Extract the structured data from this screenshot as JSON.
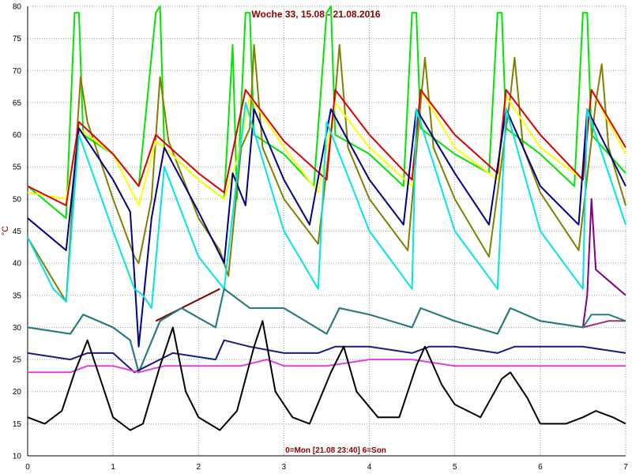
{
  "chart_data": {
    "type": "line",
    "title": "Woche 33, 15.08 - 21.08.2016",
    "xlabel": "0=Mon [21.08 23:40] 6=Son",
    "ylabel": "°C",
    "xlim": [
      0,
      7
    ],
    "ylim": [
      10,
      80
    ],
    "xticks": [
      "0",
      "1",
      "2",
      "3",
      "4",
      "5",
      "6",
      "7"
    ],
    "yticks": [
      "10",
      "15",
      "20",
      "25",
      "30",
      "35",
      "40",
      "45",
      "50",
      "55",
      "60",
      "65",
      "70",
      "75",
      "80"
    ],
    "grid": true,
    "series": [
      {
        "color": "#00e600",
        "points": [
          [
            0,
            52
          ],
          [
            0.45,
            47
          ],
          [
            0.55,
            79
          ],
          [
            0.6,
            79
          ],
          [
            0.65,
            60
          ],
          [
            1,
            57
          ],
          [
            1.3,
            52
          ],
          [
            1.5,
            79
          ],
          [
            1.55,
            80
          ],
          [
            1.6,
            58
          ],
          [
            2,
            53
          ],
          [
            2.3,
            50
          ],
          [
            2.4,
            74
          ],
          [
            2.45,
            50
          ],
          [
            2.55,
            79
          ],
          [
            2.6,
            79
          ],
          [
            2.65,
            60
          ],
          [
            3,
            57
          ],
          [
            3.35,
            52
          ],
          [
            3.5,
            79
          ],
          [
            3.55,
            80
          ],
          [
            3.6,
            60
          ],
          [
            4,
            57
          ],
          [
            4.4,
            52
          ],
          [
            4.5,
            79
          ],
          [
            4.55,
            79
          ],
          [
            4.6,
            61
          ],
          [
            5,
            57
          ],
          [
            5.4,
            54
          ],
          [
            5.5,
            79
          ],
          [
            5.55,
            79
          ],
          [
            5.6,
            61
          ],
          [
            6,
            57
          ],
          [
            6.4,
            52
          ],
          [
            6.5,
            79
          ],
          [
            6.55,
            79
          ],
          [
            6.6,
            60
          ],
          [
            7,
            54
          ]
        ]
      },
      {
        "color": "#808000",
        "points": [
          [
            0,
            44
          ],
          [
            0.45,
            34
          ],
          [
            0.62,
            69
          ],
          [
            0.7,
            62
          ],
          [
            1,
            50
          ],
          [
            1.25,
            41
          ],
          [
            1.3,
            40
          ],
          [
            1.45,
            50
          ],
          [
            1.55,
            69
          ],
          [
            1.65,
            59
          ],
          [
            2,
            47
          ],
          [
            2.25,
            42
          ],
          [
            2.35,
            38
          ],
          [
            2.5,
            58
          ],
          [
            2.6,
            61
          ],
          [
            2.65,
            74
          ],
          [
            2.75,
            58
          ],
          [
            3,
            50
          ],
          [
            3.4,
            43
          ],
          [
            3.6,
            66
          ],
          [
            3.65,
            74
          ],
          [
            3.75,
            58
          ],
          [
            4,
            50
          ],
          [
            4.45,
            42
          ],
          [
            4.6,
            65
          ],
          [
            4.65,
            72
          ],
          [
            4.75,
            58
          ],
          [
            5,
            50
          ],
          [
            5.4,
            41
          ],
          [
            5.65,
            66
          ],
          [
            5.7,
            72
          ],
          [
            5.8,
            58
          ],
          [
            6,
            51
          ],
          [
            6.45,
            42
          ],
          [
            6.65,
            65
          ],
          [
            6.72,
            71
          ],
          [
            6.8,
            58
          ],
          [
            7,
            49
          ]
        ]
      },
      {
        "color": "#ffff00",
        "points": [
          [
            0,
            51
          ],
          [
            0.45,
            50
          ],
          [
            0.6,
            61
          ],
          [
            1,
            57
          ],
          [
            1.3,
            49
          ],
          [
            1.5,
            59
          ],
          [
            1.6,
            58
          ],
          [
            2,
            53
          ],
          [
            2.3,
            50
          ],
          [
            2.45,
            56
          ],
          [
            2.6,
            66
          ],
          [
            3,
            58
          ],
          [
            3.4,
            51
          ],
          [
            3.6,
            65
          ],
          [
            4,
            58
          ],
          [
            4.5,
            52
          ],
          [
            4.6,
            67
          ],
          [
            5,
            58
          ],
          [
            5.5,
            53
          ],
          [
            5.6,
            66
          ],
          [
            6,
            58
          ],
          [
            6.5,
            53
          ],
          [
            6.6,
            67
          ],
          [
            7,
            57
          ]
        ]
      },
      {
        "color": "#dd0000",
        "points": [
          [
            0,
            52
          ],
          [
            0.45,
            49
          ],
          [
            0.6,
            62
          ],
          [
            1,
            57
          ],
          [
            1.3,
            52
          ],
          [
            1.5,
            60
          ],
          [
            2,
            54
          ],
          [
            2.3,
            51
          ],
          [
            2.55,
            67
          ],
          [
            3,
            59
          ],
          [
            3.5,
            53
          ],
          [
            3.6,
            67
          ],
          [
            4,
            60
          ],
          [
            4.5,
            53
          ],
          [
            4.6,
            67
          ],
          [
            5,
            60
          ],
          [
            5.5,
            54
          ],
          [
            5.6,
            67
          ],
          [
            6,
            60
          ],
          [
            6.5,
            53
          ],
          [
            6.6,
            67
          ],
          [
            7,
            58
          ]
        ]
      },
      {
        "color": "#000080",
        "points": [
          [
            0,
            47
          ],
          [
            0.45,
            42
          ],
          [
            0.6,
            61
          ],
          [
            1,
            53
          ],
          [
            1.2,
            48
          ],
          [
            1.25,
            38
          ],
          [
            1.3,
            27
          ],
          [
            1.45,
            47
          ],
          [
            1.6,
            58
          ],
          [
            2,
            48
          ],
          [
            2.3,
            40
          ],
          [
            2.4,
            54
          ],
          [
            2.55,
            49
          ],
          [
            2.65,
            64
          ],
          [
            3,
            53
          ],
          [
            3.3,
            46
          ],
          [
            3.55,
            64
          ],
          [
            4,
            53
          ],
          [
            4.4,
            46
          ],
          [
            4.55,
            64
          ],
          [
            5,
            54
          ],
          [
            5.4,
            46
          ],
          [
            5.6,
            64
          ],
          [
            6,
            52
          ],
          [
            6.45,
            46
          ],
          [
            6.55,
            64
          ],
          [
            7,
            52
          ]
        ]
      },
      {
        "color": "#00e6e6",
        "points": [
          [
            0,
            44
          ],
          [
            0.3,
            36
          ],
          [
            0.45,
            34
          ],
          [
            0.6,
            60
          ],
          [
            1,
            45
          ],
          [
            1.25,
            36
          ],
          [
            1.35,
            35
          ],
          [
            1.45,
            33
          ],
          [
            1.6,
            55
          ],
          [
            2,
            41
          ],
          [
            2.3,
            36
          ],
          [
            2.55,
            65
          ],
          [
            3,
            45
          ],
          [
            3.4,
            36
          ],
          [
            3.5,
            62
          ],
          [
            4,
            45
          ],
          [
            4.5,
            36
          ],
          [
            4.55,
            64
          ],
          [
            5,
            45
          ],
          [
            5.5,
            36
          ],
          [
            5.6,
            64
          ],
          [
            6,
            45
          ],
          [
            6.5,
            36
          ],
          [
            6.55,
            64
          ],
          [
            7,
            46
          ]
        ]
      },
      {
        "color": "#800080",
        "points": [
          [
            6.5,
            30
          ],
          [
            6.55,
            35
          ],
          [
            6.6,
            50
          ],
          [
            6.65,
            39
          ],
          [
            7,
            35
          ]
        ]
      },
      {
        "color": "#800000",
        "points": [
          [
            1.5,
            31
          ],
          [
            2.25,
            36
          ]
        ]
      },
      {
        "color": "#a0306a",
        "points": [
          [
            0,
            30
          ],
          [
            0.5,
            29
          ],
          [
            0.65,
            32
          ],
          [
            1,
            30
          ],
          [
            1.2,
            28
          ],
          [
            1.3,
            23
          ],
          [
            1.55,
            31
          ],
          [
            1.8,
            33
          ],
          [
            2.2,
            30
          ],
          [
            2.3,
            36
          ],
          [
            2.6,
            33
          ],
          [
            3,
            33
          ],
          [
            3.5,
            29
          ],
          [
            3.65,
            33
          ],
          [
            4,
            32
          ],
          [
            4.5,
            30
          ],
          [
            4.6,
            33
          ],
          [
            5,
            31
          ],
          [
            5.5,
            29
          ],
          [
            5.65,
            33
          ],
          [
            6,
            31
          ],
          [
            6.5,
            30
          ],
          [
            6.8,
            31
          ],
          [
            7,
            31
          ]
        ]
      },
      {
        "color": "#208080",
        "points": [
          [
            0,
            30
          ],
          [
            0.5,
            29
          ],
          [
            0.65,
            32
          ],
          [
            1,
            30
          ],
          [
            1.2,
            28
          ],
          [
            1.3,
            23
          ],
          [
            1.55,
            31
          ],
          [
            1.8,
            33
          ],
          [
            2.2,
            30
          ],
          [
            2.3,
            36
          ],
          [
            2.6,
            33
          ],
          [
            3,
            33
          ],
          [
            3.5,
            29
          ],
          [
            3.65,
            33
          ],
          [
            4,
            32
          ],
          [
            4.5,
            30
          ],
          [
            4.6,
            33
          ],
          [
            5,
            31
          ],
          [
            5.5,
            29
          ],
          [
            5.65,
            33
          ],
          [
            6,
            31
          ],
          [
            6.5,
            30
          ],
          [
            6.6,
            32
          ],
          [
            6.8,
            32
          ],
          [
            7,
            31
          ]
        ]
      },
      {
        "color": "#1a1a80",
        "points": [
          [
            0,
            26
          ],
          [
            0.5,
            25
          ],
          [
            0.7,
            26
          ],
          [
            1,
            26
          ],
          [
            1.25,
            23
          ],
          [
            1.4,
            24
          ],
          [
            1.7,
            26
          ],
          [
            2.2,
            25
          ],
          [
            2.3,
            28
          ],
          [
            2.6,
            27
          ],
          [
            3,
            26
          ],
          [
            3.4,
            26
          ],
          [
            3.6,
            27
          ],
          [
            4,
            27
          ],
          [
            4.5,
            26
          ],
          [
            4.7,
            27
          ],
          [
            5,
            27
          ],
          [
            5.5,
            26
          ],
          [
            5.7,
            27
          ],
          [
            6,
            27
          ],
          [
            6.5,
            27
          ],
          [
            7,
            26
          ]
        ]
      },
      {
        "color": "#e040e0",
        "points": [
          [
            0,
            23
          ],
          [
            0.5,
            23
          ],
          [
            0.7,
            24
          ],
          [
            1,
            24
          ],
          [
            1.3,
            23
          ],
          [
            1.6,
            24
          ],
          [
            2,
            24
          ],
          [
            2.5,
            24
          ],
          [
            2.8,
            25
          ],
          [
            3,
            24
          ],
          [
            3.5,
            24
          ],
          [
            4,
            25
          ],
          [
            4.5,
            25
          ],
          [
            5,
            24
          ],
          [
            5.5,
            24
          ],
          [
            6,
            24
          ],
          [
            6.5,
            24
          ],
          [
            7,
            24
          ]
        ]
      },
      {
        "color": "#000000",
        "points": [
          [
            0,
            16
          ],
          [
            0.2,
            15
          ],
          [
            0.4,
            17
          ],
          [
            0.55,
            23
          ],
          [
            0.7,
            28
          ],
          [
            0.9,
            20
          ],
          [
            1,
            16
          ],
          [
            1.2,
            14
          ],
          [
            1.35,
            15
          ],
          [
            1.55,
            24
          ],
          [
            1.7,
            30
          ],
          [
            1.85,
            20
          ],
          [
            2,
            16
          ],
          [
            2.25,
            14
          ],
          [
            2.45,
            17
          ],
          [
            2.65,
            27
          ],
          [
            2.75,
            31
          ],
          [
            2.9,
            20
          ],
          [
            3.1,
            16
          ],
          [
            3.3,
            15
          ],
          [
            3.55,
            23
          ],
          [
            3.7,
            27
          ],
          [
            3.85,
            20
          ],
          [
            4.1,
            16
          ],
          [
            4.35,
            16
          ],
          [
            4.55,
            24
          ],
          [
            4.65,
            27
          ],
          [
            4.85,
            21
          ],
          [
            5,
            18
          ],
          [
            5.3,
            16
          ],
          [
            5.55,
            22
          ],
          [
            5.65,
            23
          ],
          [
            5.85,
            19
          ],
          [
            6,
            15
          ],
          [
            6.3,
            15
          ],
          [
            6.5,
            16
          ],
          [
            6.65,
            17
          ],
          [
            6.85,
            16
          ],
          [
            7,
            15
          ]
        ]
      }
    ]
  }
}
